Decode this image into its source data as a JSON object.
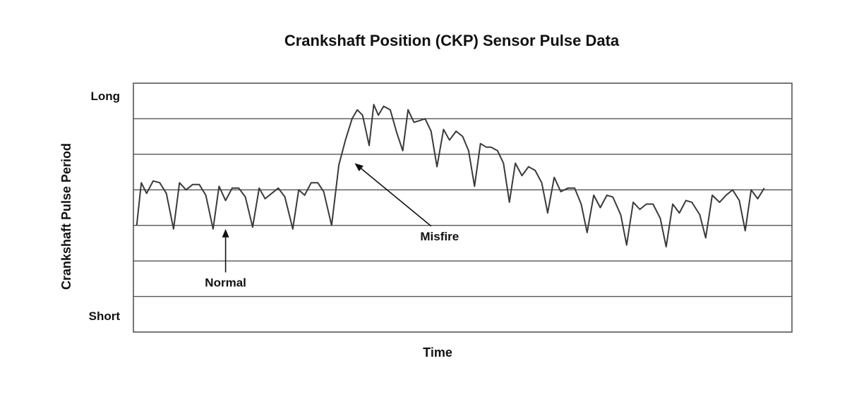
{
  "chart_data": {
    "type": "line",
    "title": "Crankshaft Position (CKP) Sensor Pulse Data",
    "xlabel": "Time",
    "ylabel": "Crankshaft Pulse Period",
    "y_tick_labels": {
      "top": "Long",
      "bottom": "Short"
    },
    "ylim": [
      0,
      7
    ],
    "xlim": [
      0,
      100
    ],
    "grid": true,
    "legend": "none",
    "series": [
      {
        "values": [
          [
            0.5,
            3.0
          ],
          [
            1.2,
            4.2
          ],
          [
            2.0,
            3.9
          ],
          [
            3.0,
            4.25
          ],
          [
            4.0,
            4.2
          ],
          [
            5.0,
            3.9
          ],
          [
            6.1,
            2.9
          ],
          [
            7.0,
            4.2
          ],
          [
            8.0,
            4.0
          ],
          [
            9.0,
            4.15
          ],
          [
            10.0,
            4.15
          ],
          [
            11.0,
            3.85
          ],
          [
            12.1,
            2.9
          ],
          [
            13.0,
            4.1
          ],
          [
            14.0,
            3.7
          ],
          [
            15.0,
            4.05
          ],
          [
            16.0,
            4.05
          ],
          [
            17.0,
            3.8
          ],
          [
            18.1,
            2.95
          ],
          [
            19.1,
            4.05
          ],
          [
            20.0,
            3.75
          ],
          [
            21.0,
            3.9
          ],
          [
            22.0,
            4.05
          ],
          [
            23.0,
            3.8
          ],
          [
            24.2,
            2.9
          ],
          [
            25.1,
            4.0
          ],
          [
            26.0,
            3.85
          ],
          [
            27.0,
            4.2
          ],
          [
            28.0,
            4.2
          ],
          [
            28.9,
            3.95
          ],
          [
            30.1,
            3.0
          ],
          [
            31.2,
            4.7
          ],
          [
            32.2,
            5.4
          ],
          [
            33.2,
            6.0
          ],
          [
            34.0,
            6.25
          ],
          [
            34.8,
            6.1
          ],
          [
            35.8,
            5.25
          ],
          [
            36.5,
            6.4
          ],
          [
            37.2,
            6.1
          ],
          [
            38.0,
            6.35
          ],
          [
            39.0,
            6.25
          ],
          [
            40.0,
            5.6
          ],
          [
            40.9,
            5.1
          ],
          [
            41.7,
            6.25
          ],
          [
            42.6,
            5.9
          ],
          [
            43.5,
            5.95
          ],
          [
            44.3,
            6.0
          ],
          [
            45.2,
            5.65
          ],
          [
            46.1,
            4.65
          ],
          [
            47.1,
            5.7
          ],
          [
            48.0,
            5.4
          ],
          [
            49.0,
            5.65
          ],
          [
            50.0,
            5.5
          ],
          [
            50.9,
            5.1
          ],
          [
            51.8,
            4.1
          ],
          [
            52.7,
            5.3
          ],
          [
            53.6,
            5.2
          ],
          [
            54.3,
            5.2
          ],
          [
            55.3,
            5.1
          ],
          [
            56.2,
            4.75
          ],
          [
            57.1,
            3.65
          ],
          [
            58.0,
            4.75
          ],
          [
            59.0,
            4.4
          ],
          [
            60.0,
            4.65
          ],
          [
            61.0,
            4.55
          ],
          [
            62.0,
            4.2
          ],
          [
            62.9,
            3.35
          ],
          [
            63.9,
            4.35
          ],
          [
            64.9,
            3.95
          ],
          [
            66.0,
            4.05
          ],
          [
            67.0,
            4.05
          ],
          [
            68.0,
            3.6
          ],
          [
            68.9,
            2.8
          ],
          [
            69.9,
            3.85
          ],
          [
            70.9,
            3.5
          ],
          [
            71.9,
            3.85
          ],
          [
            72.8,
            3.8
          ],
          [
            74.0,
            3.3
          ],
          [
            74.9,
            2.45
          ],
          [
            75.9,
            3.65
          ],
          [
            76.9,
            3.45
          ],
          [
            77.9,
            3.6
          ],
          [
            78.9,
            3.6
          ],
          [
            80.0,
            3.2
          ],
          [
            80.9,
            2.4
          ],
          [
            81.9,
            3.6
          ],
          [
            82.9,
            3.35
          ],
          [
            83.9,
            3.7
          ],
          [
            84.8,
            3.65
          ],
          [
            86.0,
            3.3
          ],
          [
            86.9,
            2.65
          ],
          [
            87.9,
            3.85
          ],
          [
            89.0,
            3.65
          ],
          [
            90.0,
            3.85
          ],
          [
            91.0,
            4.0
          ],
          [
            92.0,
            3.7
          ],
          [
            92.9,
            2.85
          ],
          [
            93.8,
            4.0
          ],
          [
            94.8,
            3.75
          ],
          [
            95.8,
            4.05
          ]
        ]
      }
    ],
    "annotations": [
      {
        "text": "Normal",
        "point": [
          14.0,
          2.9
        ],
        "label_at": [
          14.0,
          1.4
        ]
      },
      {
        "text": "Misfire",
        "point": [
          33.6,
          4.75
        ],
        "label_at": [
          46.5,
          2.7
        ]
      }
    ]
  }
}
